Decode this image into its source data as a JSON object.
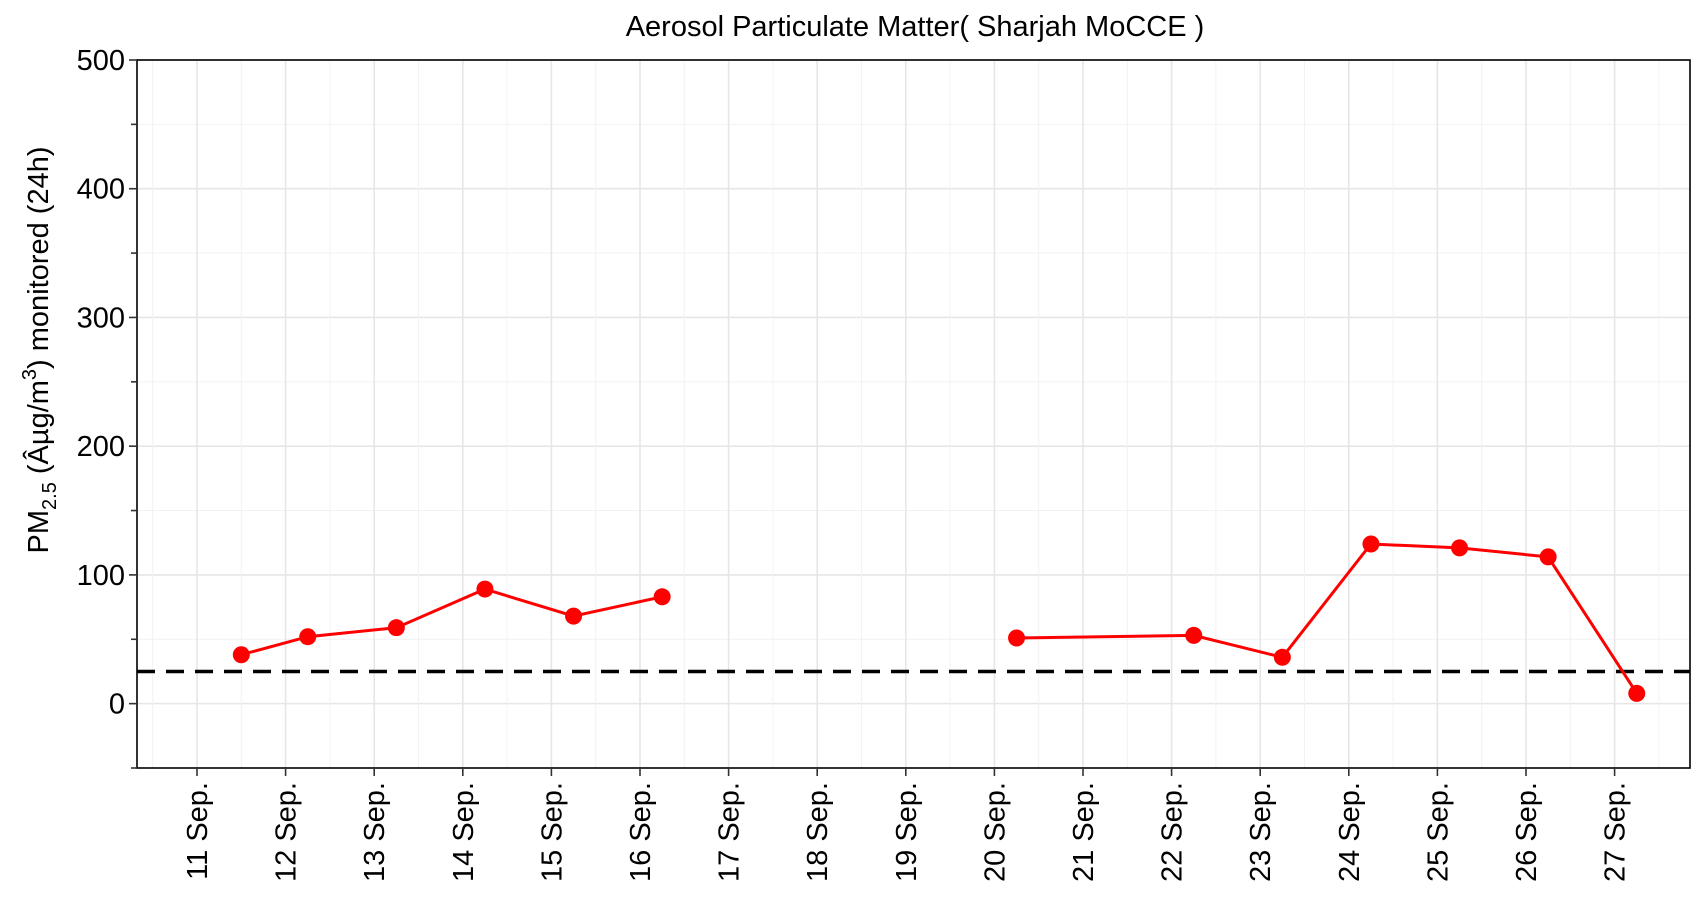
{
  "chart_data": {
    "type": "line",
    "title": "Aerosol Particulate Matter( Sharjah MoCCE )",
    "ylabel_parts": {
      "pm": "PM",
      "sub": "2.5",
      "unit": " (Âµg/m",
      "sup": "3",
      "rest": ") monitored (24h)"
    },
    "xlabel": "",
    "categories": [
      "11 Sep.",
      "12 Sep.",
      "13 Sep.",
      "14 Sep.",
      "15 Sep.",
      "16 Sep.",
      "17 Sep.",
      "18 Sep.",
      "19 Sep.",
      "20 Sep.",
      "21 Sep.",
      "22 Sep.",
      "23 Sep.",
      "24 Sep.",
      "25 Sep.",
      "26 Sep.",
      "27 Sep."
    ],
    "yticks": [
      0,
      100,
      200,
      300,
      400,
      500
    ],
    "ylim": [
      -50,
      500
    ],
    "grid": true,
    "series": [
      {
        "color": "#ff0000",
        "points": [
          {
            "x": "2023-09-11T12:00",
            "y": 38
          },
          {
            "x": "2023-09-12T06:00",
            "y": 52
          },
          {
            "x": "2023-09-13T06:00",
            "y": 59
          },
          {
            "x": "2023-09-14T06:00",
            "y": 89
          },
          {
            "x": "2023-09-15T06:00",
            "y": 68
          },
          {
            "x": "2023-09-16T06:00",
            "y": 83
          },
          {
            "x": "2023-09-20T06:00",
            "y": 51
          },
          {
            "x": "2023-09-22T06:00",
            "y": 53
          },
          {
            "x": "2023-09-23T06:00",
            "y": 36
          },
          {
            "x": "2023-09-24T06:00",
            "y": 124
          },
          {
            "x": "2023-09-25T06:00",
            "y": 121
          },
          {
            "x": "2023-09-26T06:00",
            "y": 114
          },
          {
            "x": "2023-09-27T06:00",
            "y": 8
          }
        ],
        "segments": [
          [
            0,
            5
          ],
          [
            6,
            12
          ]
        ]
      }
    ],
    "reference_line": {
      "y": 25,
      "style": "dashed",
      "color": "#000000"
    }
  }
}
